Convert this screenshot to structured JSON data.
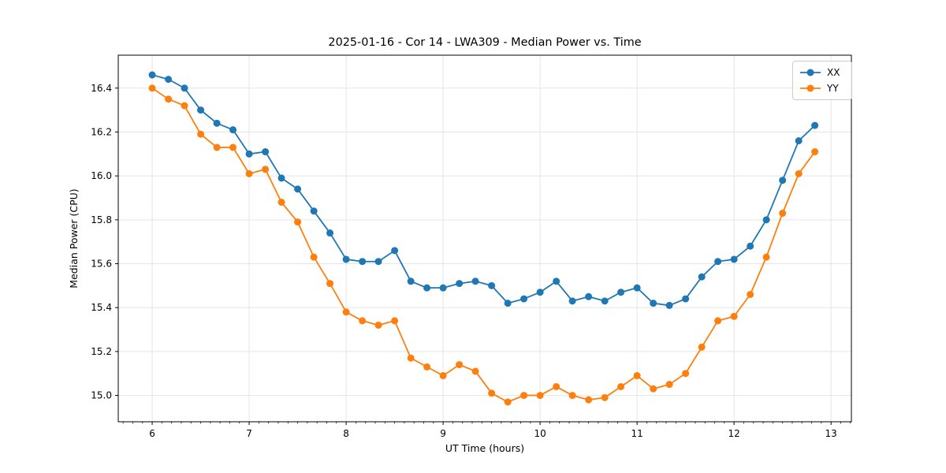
{
  "figure": {
    "kind": "matplotlib-line-plot",
    "background": "#ffffff",
    "spine_color": "#000000",
    "grid_color": "#e5e5e5",
    "tick_label_size": 12
  },
  "chart_data": {
    "type": "line",
    "title": "2025-01-16 - Cor 14 - LWA309 - Median Power vs. Time",
    "xlabel": "UT Time (hours)",
    "ylabel": "Median Power (CPU)",
    "grid": true,
    "legend_position": "upper right",
    "xlim": [
      5.65,
      13.21
    ],
    "ylim": [
      14.88,
      16.55
    ],
    "x_ticks": [
      6,
      7,
      8,
      9,
      10,
      11,
      12,
      13
    ],
    "x_minor_step": 0.1,
    "y_ticks": [
      15.0,
      15.2,
      15.4,
      15.6,
      15.8,
      16.0,
      16.2,
      16.4
    ],
    "x": [
      6.0,
      6.167,
      6.333,
      6.5,
      6.667,
      6.833,
      7.0,
      7.167,
      7.333,
      7.5,
      7.667,
      7.833,
      8.0,
      8.167,
      8.333,
      8.5,
      8.667,
      8.833,
      9.0,
      9.167,
      9.333,
      9.5,
      9.667,
      9.833,
      10.0,
      10.167,
      10.333,
      10.5,
      10.667,
      10.833,
      11.0,
      11.167,
      11.333,
      11.5,
      11.667,
      11.833,
      12.0,
      12.167,
      12.333,
      12.5,
      12.667,
      12.833
    ],
    "series": [
      {
        "name": "XX",
        "color": "#1f77b4",
        "marker": "circle",
        "values": [
          16.46,
          16.44,
          16.4,
          16.3,
          16.24,
          16.21,
          16.1,
          16.11,
          15.99,
          15.94,
          15.84,
          15.74,
          15.62,
          15.61,
          15.61,
          15.66,
          15.52,
          15.49,
          15.49,
          15.51,
          15.52,
          15.5,
          15.42,
          15.44,
          15.47,
          15.52,
          15.43,
          15.45,
          15.43,
          15.47,
          15.49,
          15.42,
          15.41,
          15.44,
          15.54,
          15.61,
          15.62,
          15.68,
          15.8,
          15.98,
          16.16,
          16.23
        ]
      },
      {
        "name": "YY",
        "color": "#ff7f0e",
        "marker": "circle",
        "values": [
          16.4,
          16.35,
          16.32,
          16.19,
          16.13,
          16.13,
          16.01,
          16.03,
          15.88,
          15.79,
          15.63,
          15.51,
          15.38,
          15.34,
          15.32,
          15.34,
          15.17,
          15.13,
          15.09,
          15.14,
          15.11,
          15.01,
          14.97,
          15.0,
          15.0,
          15.04,
          15.0,
          14.98,
          14.99,
          15.04,
          15.09,
          15.03,
          15.05,
          15.1,
          15.22,
          15.34,
          15.36,
          15.46,
          15.63,
          15.83,
          16.01,
          16.11
        ]
      }
    ]
  }
}
